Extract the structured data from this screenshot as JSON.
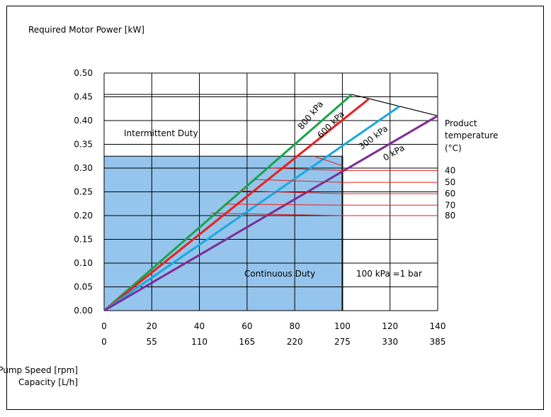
{
  "chart_data": {
    "type": "line",
    "ylabel": "Required Motor Power [kW]",
    "xlabel": "Pump Speed [rpm]",
    "xlabel2": "Capacity [L/h]",
    "x_ticks": [
      0,
      20,
      40,
      60,
      80,
      100,
      120,
      140
    ],
    "x2_ticks": [
      0,
      55,
      110,
      165,
      220,
      275,
      330,
      385
    ],
    "y_ticks": [
      "0.00",
      "0.05",
      "0.10",
      "0.15",
      "0.20",
      "0.25",
      "0.30",
      "0.35",
      "0.40",
      "0.45",
      "0.50"
    ],
    "xlim": [
      0,
      140
    ],
    "ylim": [
      0,
      0.5
    ],
    "grid": true,
    "continuous_duty": {
      "label": "Continuous Duty",
      "x_max": 100,
      "y_max": 0.325
    },
    "intermittent_label": "Intermittent Duty",
    "note": "100 kPa =1 bar",
    "series": [
      {
        "name": "800 kPa",
        "color": "#1aa34a",
        "x": [
          0,
          104
        ],
        "y": [
          0,
          0.455
        ]
      },
      {
        "name": "600 kPa",
        "color": "#e8201e",
        "x": [
          0,
          111
        ],
        "y": [
          0,
          0.445
        ]
      },
      {
        "name": "300 kPa",
        "color": "#1ba8e0",
        "x": [
          0,
          124
        ],
        "y": [
          0,
          0.43
        ]
      },
      {
        "name": "0 kPa",
        "color": "#7b2d97",
        "x": [
          0,
          140
        ],
        "y": [
          0,
          0.41
        ]
      }
    ],
    "temperature": {
      "title_line1": "Product",
      "title_line2": "temperature",
      "title_line3": "(°C)",
      "line_color": "#e8201e",
      "levels": [
        {
          "label": "40",
          "y": 0.295
        },
        {
          "label": "50",
          "y": 0.27
        },
        {
          "label": "60",
          "y": 0.246
        },
        {
          "label": "70",
          "y": 0.222
        },
        {
          "label": "80",
          "y": 0.2
        }
      ]
    },
    "envelope": {
      "color": "#000000",
      "x": [
        104,
        140
      ],
      "y": [
        0.455,
        0.41
      ]
    },
    "fill_color": "#95c5ec"
  }
}
